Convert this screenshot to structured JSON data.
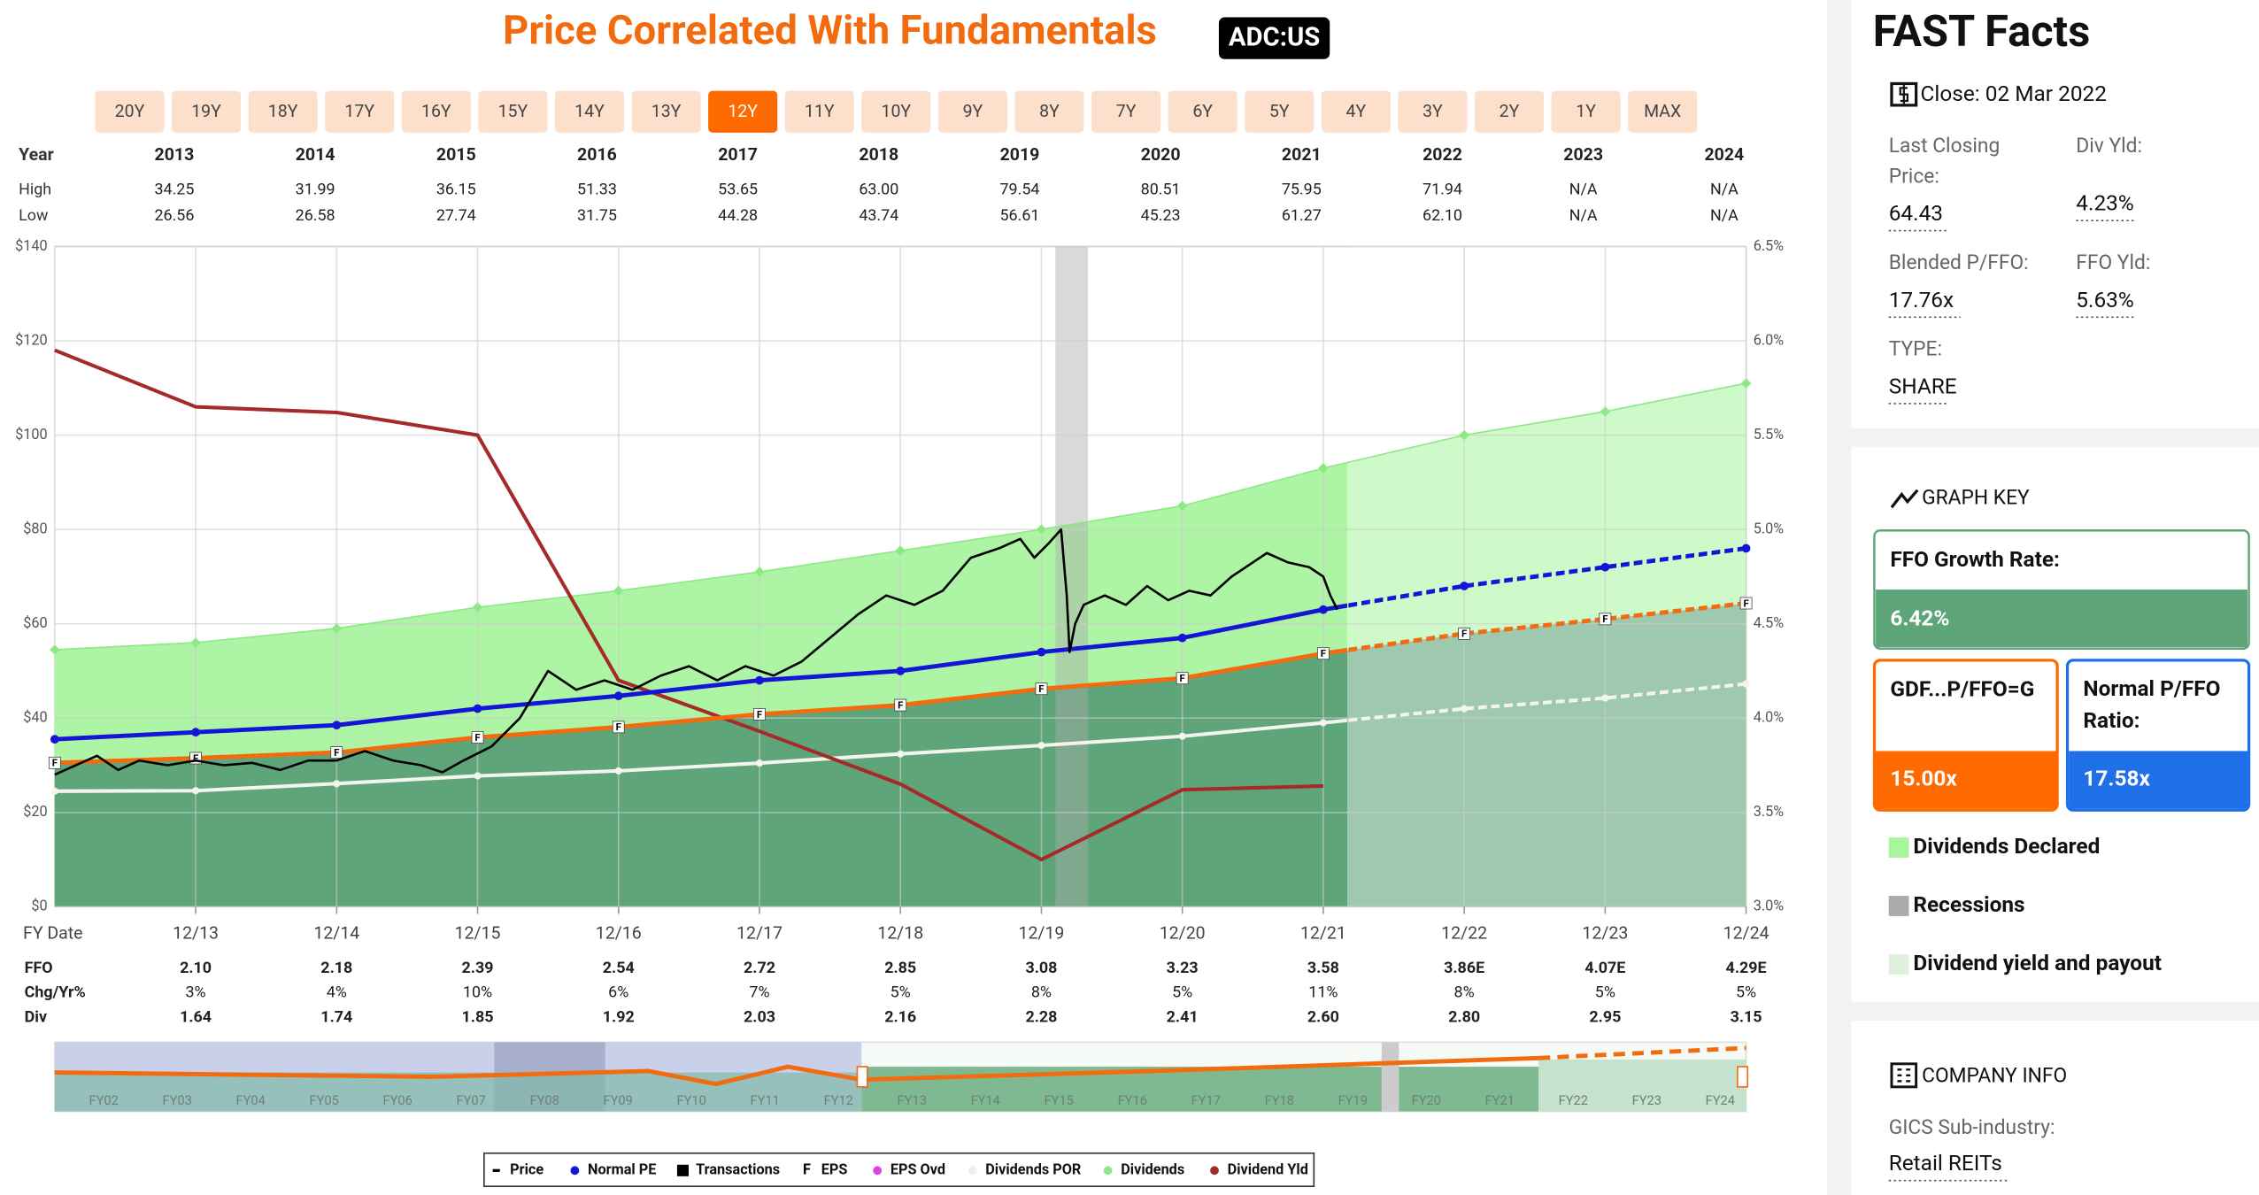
{
  "header": {
    "title": "Price Correlated With Fundamentals",
    "ticker": "ADC:US"
  },
  "range_buttons": {
    "labels": [
      "20Y",
      "19Y",
      "18Y",
      "17Y",
      "16Y",
      "15Y",
      "14Y",
      "13Y",
      "12Y",
      "11Y",
      "10Y",
      "9Y",
      "8Y",
      "7Y",
      "6Y",
      "5Y",
      "4Y",
      "3Y",
      "2Y",
      "1Y",
      "MAX"
    ],
    "active_index": 8
  },
  "year_table": {
    "headers": [
      "Year",
      "High",
      "Low"
    ],
    "years": [
      "2013",
      "2014",
      "2015",
      "2016",
      "2017",
      "2018",
      "2019",
      "2020",
      "2021",
      "2022",
      "2023",
      "2024"
    ],
    "high": [
      "34.25",
      "31.99",
      "36.15",
      "51.33",
      "53.65",
      "63.00",
      "79.54",
      "80.51",
      "75.95",
      "71.94",
      "N/A",
      "N/A"
    ],
    "low": [
      "26.56",
      "26.58",
      "27.74",
      "31.75",
      "44.28",
      "43.74",
      "56.61",
      "45.23",
      "61.27",
      "62.10",
      "N/A",
      "N/A"
    ]
  },
  "chart_data": {
    "type": "line",
    "xlabel": "FY Date",
    "xlim": [
      0,
      12
    ],
    "xticks": [
      {
        "value": 1,
        "label": "12/13"
      },
      {
        "value": 2,
        "label": "12/14"
      },
      {
        "value": 3,
        "label": "12/15"
      },
      {
        "value": 4,
        "label": "12/16"
      },
      {
        "value": 5,
        "label": "12/17"
      },
      {
        "value": 6,
        "label": "12/18"
      },
      {
        "value": 7,
        "label": "12/19"
      },
      {
        "value": 8,
        "label": "12/20"
      },
      {
        "value": 9,
        "label": "12/21"
      },
      {
        "value": 10,
        "label": "12/22"
      },
      {
        "value": 11,
        "label": "12/23"
      },
      {
        "value": 12,
        "label": "12/24"
      }
    ],
    "ylim": [
      0,
      140
    ],
    "yticks": [
      {
        "value": 0,
        "label": "$0"
      },
      {
        "value": 20,
        "label": "$20"
      },
      {
        "value": 40,
        "label": "$40"
      },
      {
        "value": 60,
        "label": "$60"
      },
      {
        "value": 80,
        "label": "$80"
      },
      {
        "value": 100,
        "label": "$100"
      },
      {
        "value": 120,
        "label": "$120"
      },
      {
        "value": 140,
        "label": "$140"
      }
    ],
    "y2lim": [
      3.0,
      6.5
    ],
    "y2ticks": [
      {
        "value": 3.0,
        "label": "3.0%"
      },
      {
        "value": 3.5,
        "label": "3.5%"
      },
      {
        "value": 4.0,
        "label": "4.0%"
      },
      {
        "value": 4.5,
        "label": "4.5%"
      },
      {
        "value": 5.0,
        "label": "5.0%"
      },
      {
        "value": 5.5,
        "label": "5.5%"
      },
      {
        "value": 6.0,
        "label": "6.0%"
      },
      {
        "value": 6.5,
        "label": "6.5%"
      }
    ],
    "grid": true,
    "eps_marker": "F",
    "recession": [
      7.1,
      7.33
    ],
    "estimate_start": 9.17,
    "series": [
      {
        "name": "Price",
        "color": "#000000",
        "x": [
          0,
          0.15,
          0.3,
          0.45,
          0.6,
          0.8,
          1,
          1.2,
          1.4,
          1.6,
          1.8,
          2,
          2.2,
          2.4,
          2.6,
          2.75,
          2.9,
          3.1,
          3.3,
          3.5,
          3.7,
          3.9,
          4.1,
          4.3,
          4.5,
          4.7,
          4.9,
          5.1,
          5.3,
          5.5,
          5.7,
          5.9,
          6.1,
          6.3,
          6.5,
          6.7,
          6.85,
          6.95,
          7.05,
          7.14,
          7.18,
          7.2,
          7.24,
          7.3,
          7.45,
          7.6,
          7.75,
          7.9,
          8.05,
          8.2,
          8.35,
          8.5,
          8.6,
          8.75,
          8.9,
          9.0,
          9.05,
          9.1
        ],
        "values": [
          28,
          30,
          32,
          29,
          31,
          30,
          31,
          30,
          30.5,
          29,
          31,
          31,
          33,
          31,
          30,
          28.5,
          31,
          34,
          40,
          50,
          46,
          48,
          46,
          49,
          51,
          48,
          51,
          49,
          52,
          57,
          62,
          66,
          64,
          67,
          74,
          76,
          78,
          74,
          77,
          80,
          66,
          54,
          60,
          64,
          66,
          64,
          68,
          65,
          67,
          66,
          70,
          73,
          75,
          73,
          72,
          70,
          66,
          63
        ]
      },
      {
        "name": "Normal PE",
        "color": "#1515d6",
        "x": [
          0,
          1,
          2,
          3,
          4,
          5,
          6,
          7,
          8,
          9,
          10,
          11,
          12
        ],
        "values": [
          35.5,
          37,
          38.5,
          42,
          44.7,
          48,
          50,
          54,
          57,
          63,
          68,
          72,
          76
        ]
      },
      {
        "name": "Transactions",
        "color": "#000000",
        "x": [],
        "values": []
      },
      {
        "name": "EPS",
        "color": "#f26b0f",
        "x": [
          0,
          1,
          2,
          3,
          4,
          5,
          6,
          7,
          8,
          9,
          10,
          11,
          12
        ],
        "values": [
          30.5,
          31.5,
          32.7,
          35.9,
          38.1,
          40.8,
          42.75,
          46.2,
          48.45,
          53.7,
          57.9,
          61,
          64.35
        ]
      },
      {
        "name": "EPS Ovd",
        "color": "#e040e0",
        "x": [],
        "values": []
      },
      {
        "name": "Dividends POR",
        "color": "#f4f4ee",
        "x": [
          0,
          1,
          2,
          3,
          4,
          5,
          6,
          7,
          8,
          9,
          10,
          11,
          12
        ],
        "values": [
          24.5,
          24.6,
          26.1,
          27.75,
          28.8,
          30.45,
          32.4,
          34.2,
          36.15,
          39,
          42,
          44.25,
          47.25
        ]
      },
      {
        "name": "Dividends",
        "color": "#adf5a4",
        "x": [
          0,
          1,
          2,
          3,
          4,
          5,
          6,
          7,
          8,
          9,
          10,
          11,
          12
        ],
        "values": [
          54.5,
          56,
          59,
          63.5,
          67,
          71,
          75.5,
          80,
          85,
          93,
          100,
          105,
          111
        ]
      },
      {
        "name": "Dividend Yld",
        "color": "#a52a2a",
        "axis": "y2",
        "x": [
          0,
          1,
          2,
          3,
          4,
          5,
          6,
          7,
          8,
          9
        ],
        "values": [
          5.95,
          5.65,
          5.62,
          5.5,
          4.2,
          3.93,
          3.65,
          3.25,
          3.62,
          3.64
        ]
      }
    ]
  },
  "fundamentals": {
    "headers": [
      "FFO",
      "Chg/Yr%",
      "Div"
    ],
    "ffo": [
      "2.10",
      "2.18",
      "2.39",
      "2.54",
      "2.72",
      "2.85",
      "3.08",
      "3.23",
      "3.58",
      "3.86E",
      "4.07E",
      "4.29E"
    ],
    "chg": [
      "3%",
      "4%",
      "10%",
      "6%",
      "7%",
      "5%",
      "8%",
      "5%",
      "11%",
      "8%",
      "5%",
      "5%"
    ],
    "div": [
      "1.64",
      "1.74",
      "1.85",
      "1.92",
      "2.03",
      "2.16",
      "2.28",
      "2.41",
      "2.60",
      "2.80",
      "2.95",
      "3.15"
    ]
  },
  "navigator": {
    "labels": [
      "FY02",
      "FY03",
      "FY04",
      "FY05",
      "FY06",
      "FY07",
      "FY08",
      "FY09",
      "FY10",
      "FY11",
      "FY12",
      "FY13",
      "FY14",
      "FY15",
      "FY16",
      "FY17",
      "FY18",
      "FY19",
      "FY20",
      "FY21",
      "FY22",
      "FY23",
      "FY24"
    ]
  },
  "sidebar": {
    "title": "FAST Facts",
    "close": "Close: 02 Mar 2022",
    "facts": [
      {
        "label": "Last Closing Price:",
        "value": "64.43"
      },
      {
        "label": "Div Yld:",
        "value": "4.23%"
      },
      {
        "label": "Blended P/FFO:",
        "value": "17.76x"
      },
      {
        "label": "FFO Yld:",
        "value": "5.63%"
      },
      {
        "label": "TYPE:",
        "value": "SHARE"
      }
    ],
    "graph_key": {
      "title": "GRAPH KEY",
      "growth_label": "FFO Growth Rate:",
      "growth_value": "6.42%",
      "gdf_label": "GDF...P/FFO=G",
      "gdf_value": "15.00x",
      "normal_label": "Normal P/FFO Ratio:",
      "normal_value": "17.58x",
      "items": [
        "Dividends Declared",
        "Recessions",
        "Dividend yield and payout"
      ]
    },
    "company": {
      "title": "COMPANY INFO",
      "label": "GICS Sub-industry:",
      "value": "Retail REITs"
    }
  }
}
